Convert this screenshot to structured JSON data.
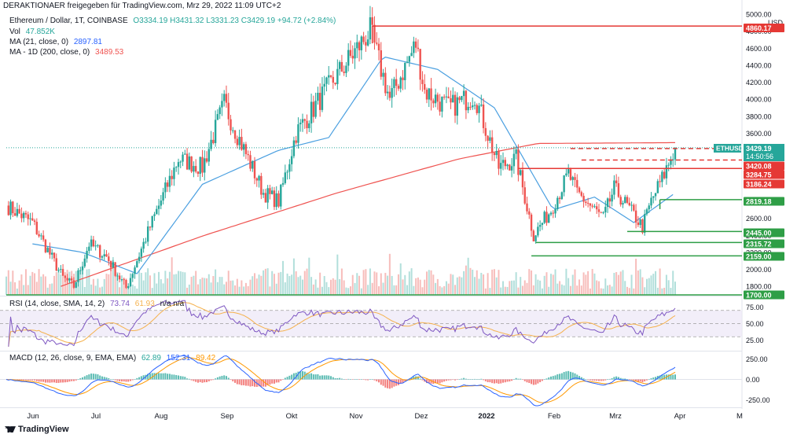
{
  "header": {
    "shared_by": "DERAKTIONAER freigegeben für TradingView.com, Mrz 29, 2022 11:09 UTC+2"
  },
  "legend": {
    "symbol": "Ethereum / Dollar, 1T, COINBASE",
    "ohlc": "O3334.19  H3431.32  L3331.23  C3429.19  +94.72 (+2.84%)",
    "vol_label": "Vol",
    "vol_value": "47.852K",
    "ma21_label": "MA (21, close, 0)",
    "ma21_value": "2897.81",
    "ma200_label": "MA - 1D (200, close, 0)",
    "ma200_value": "3489.53",
    "rsi_label": "RSI (14, close, SMA, 14, 2)",
    "rsi_value": "73.74",
    "rsi_sma": "61.93",
    "rsi_na": "n/a  n/a",
    "macd_label": "MACD (12, 26, close, 9, EMA, EMA)",
    "macd_hist": "62.89",
    "macd_line": "152.31",
    "macd_signal": "89.42"
  },
  "branding": "TradingView",
  "colors": {
    "up": "#26a69a",
    "down": "#ef5350",
    "ma21": "#4a9fe0",
    "ma200": "#ef5350",
    "green_level": "#2e9e46",
    "red_level": "#e53935",
    "rsi": "#7e57c2",
    "rsi_sma": "#f5b14c",
    "macd_line": "#2962ff",
    "macd_signal": "#ff9800"
  },
  "chart_data": {
    "type": "candlestick",
    "symbol": "ETHUSD",
    "y_axis_unit": "USD",
    "ylim": [
      1700,
      5000
    ],
    "price_ticks": [
      "5000.00",
      "4800.00",
      "4600.00",
      "4400.00",
      "4200.00",
      "4000.00",
      "3800.00",
      "3600.00",
      "3400.00",
      "3200.00",
      "3000.00",
      "2800.00",
      "2600.00",
      "2400.00",
      "2200.00",
      "2000.00",
      "1800.00"
    ],
    "x_ticks": [
      "Jun",
      "Jul",
      "Aug",
      "Sep",
      "Okt",
      "Nov",
      "Dez",
      "2022",
      "Feb",
      "Mrz",
      "Apr",
      "M"
    ],
    "last_price": {
      "label": "ETHUSD",
      "value": "3429.19",
      "countdown": "14:50:56"
    },
    "resistance_levels": [
      {
        "value": 4860.17,
        "label": "4860.17",
        "color": "red"
      },
      {
        "value": 3420.08,
        "label": "3420.08",
        "color": "red",
        "dashed": true
      },
      {
        "value": 3284.75,
        "label": "3284.75",
        "color": "red",
        "dashed": true
      },
      {
        "value": 3186.24,
        "label": "3186.24",
        "color": "red"
      }
    ],
    "support_levels": [
      {
        "value": 2819.18,
        "label": "2819.18"
      },
      {
        "value": 2445.0,
        "label": "2445.00"
      },
      {
        "value": 2315.72,
        "label": "2315.72"
      },
      {
        "value": 2159.0,
        "label": "2159.00"
      },
      {
        "value": 1700.0,
        "label": "1700.00"
      }
    ],
    "close_anchors": [
      {
        "date": "2021-05-26",
        "close": 2750
      },
      {
        "date": "2021-06-07",
        "close": 2550
      },
      {
        "date": "2021-06-21",
        "close": 1900
      },
      {
        "date": "2021-06-26",
        "close": 1800
      },
      {
        "date": "2021-07-03",
        "close": 2300
      },
      {
        "date": "2021-07-11",
        "close": 2150
      },
      {
        "date": "2021-07-20",
        "close": 1780
      },
      {
        "date": "2021-07-31",
        "close": 2500
      },
      {
        "date": "2021-08-13",
        "close": 3300
      },
      {
        "date": "2021-08-24",
        "close": 3200
      },
      {
        "date": "2021-09-03",
        "close": 3950
      },
      {
        "date": "2021-09-07",
        "close": 3700
      },
      {
        "date": "2021-09-21",
        "close": 2900
      },
      {
        "date": "2021-09-28",
        "close": 2800
      },
      {
        "date": "2021-10-06",
        "close": 3600
      },
      {
        "date": "2021-10-21",
        "close": 4150
      },
      {
        "date": "2021-11-09",
        "close": 4800
      },
      {
        "date": "2021-11-18",
        "close": 4000
      },
      {
        "date": "2021-11-30",
        "close": 4650
      },
      {
        "date": "2021-12-04",
        "close": 4100
      },
      {
        "date": "2021-12-15",
        "close": 3900
      },
      {
        "date": "2021-12-27",
        "close": 4050
      },
      {
        "date": "2022-01-07",
        "close": 3200
      },
      {
        "date": "2022-01-15",
        "close": 3300
      },
      {
        "date": "2022-01-23",
        "close": 2400
      },
      {
        "date": "2022-01-31",
        "close": 2700
      },
      {
        "date": "2022-02-08",
        "close": 3120
      },
      {
        "date": "2022-02-12",
        "close": 2900
      },
      {
        "date": "2022-02-24",
        "close": 2600
      },
      {
        "date": "2022-03-01",
        "close": 2950
      },
      {
        "date": "2022-03-14",
        "close": 2500
      },
      {
        "date": "2022-03-18",
        "close": 2800
      },
      {
        "date": "2022-03-24",
        "close": 3120
      },
      {
        "date": "2022-03-29",
        "close": 3429
      }
    ],
    "ma21_anchors": [
      {
        "date": "2021-06-07",
        "value": 2300
      },
      {
        "date": "2021-06-30",
        "value": 2200
      },
      {
        "date": "2021-07-25",
        "value": 1950
      },
      {
        "date": "2021-08-24",
        "value": 3000
      },
      {
        "date": "2021-09-28",
        "value": 3400
      },
      {
        "date": "2021-10-21",
        "value": 3550
      },
      {
        "date": "2021-11-15",
        "value": 4500
      },
      {
        "date": "2021-12-10",
        "value": 4350
      },
      {
        "date": "2022-01-05",
        "value": 3900
      },
      {
        "date": "2022-02-01",
        "value": 2700
      },
      {
        "date": "2022-02-20",
        "value": 2850
      },
      {
        "date": "2022-03-10",
        "value": 2550
      },
      {
        "date": "2022-03-29",
        "value": 2897.81
      }
    ],
    "ma200_anchors": [
      {
        "date": "2021-06-20",
        "value": 1800
      },
      {
        "date": "2021-08-25",
        "value": 2400
      },
      {
        "date": "2021-10-25",
        "value": 2900
      },
      {
        "date": "2021-12-20",
        "value": 3300
      },
      {
        "date": "2022-01-25",
        "value": 3480
      },
      {
        "date": "2022-03-29",
        "value": 3489.53
      }
    ],
    "rsi": {
      "ylim": [
        10,
        90
      ],
      "ticks": [
        "75.00",
        "50.00",
        "25.00"
      ],
      "bands": [
        70,
        30
      ],
      "mid": 50
    },
    "macd": {
      "ylim": [
        -330,
        330
      ],
      "ticks": [
        "250.00",
        "0.00",
        "-250.00"
      ]
    }
  }
}
